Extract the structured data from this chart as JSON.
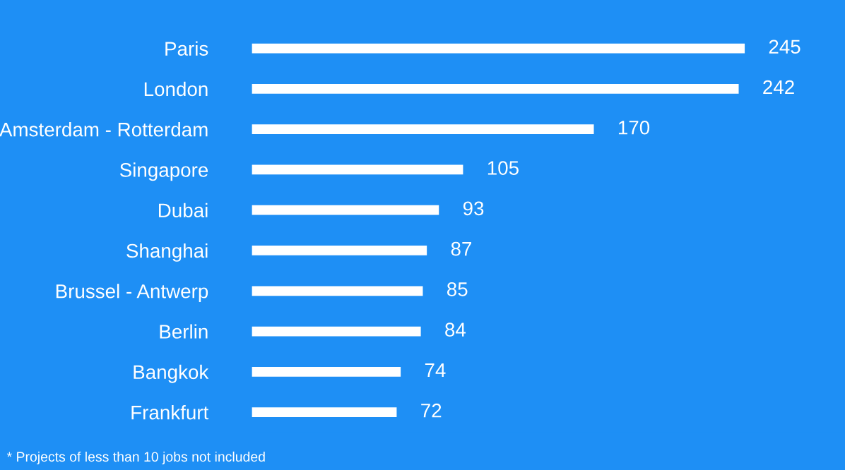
{
  "chart_data": {
    "type": "bar",
    "orientation": "horizontal",
    "categories": [
      "Paris",
      "London",
      "Amsterdam - Rotterdam",
      "Singapore",
      "Dubai",
      "Shanghai",
      "Brussel - Antwerp",
      "Berlin",
      "Bangkok",
      "Frankfurt"
    ],
    "values": [
      245,
      242,
      170,
      105,
      93,
      87,
      85,
      84,
      74,
      72
    ],
    "color": "#ffffff",
    "data_labels": true,
    "tick_labels": "y",
    "grid": false,
    "annotations": [
      "* Projects of less than 10 jobs not included"
    ]
  }
}
